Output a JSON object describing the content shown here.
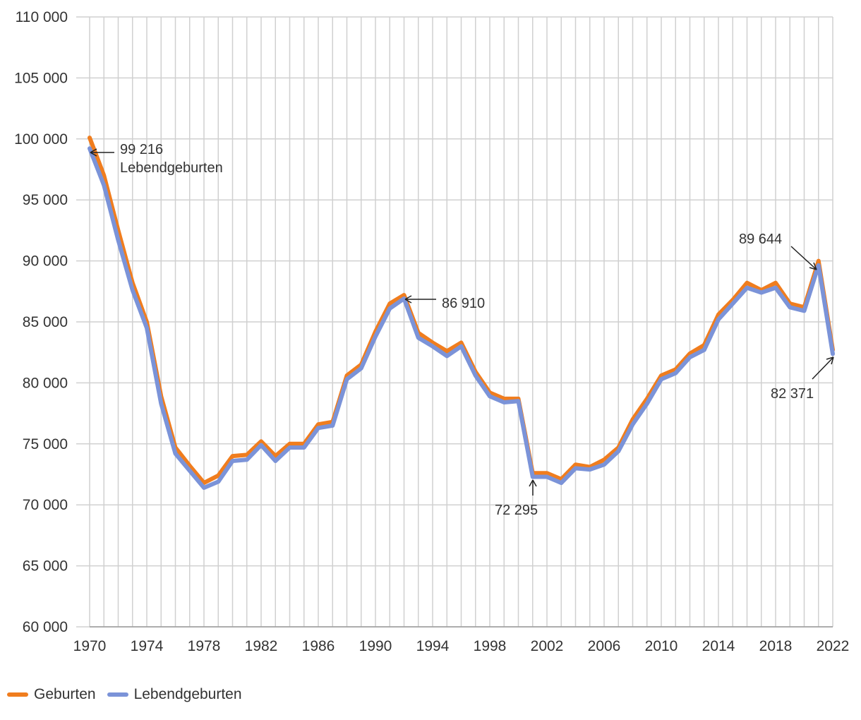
{
  "chart_data": {
    "type": "line",
    "title": "",
    "xlabel": "",
    "ylabel": "",
    "ylim": [
      60000,
      110000
    ],
    "y_ticks": [
      60000,
      65000,
      70000,
      75000,
      80000,
      85000,
      90000,
      95000,
      100000,
      105000,
      110000
    ],
    "y_tick_labels": [
      "60 000",
      "65 000",
      "70 000",
      "75 000",
      "80 000",
      "85 000",
      "90 000",
      "95 000",
      "100 000",
      "105 000",
      "110 000"
    ],
    "x_tick_labels": [
      "1970",
      "1974",
      "1978",
      "1982",
      "1986",
      "1990",
      "1994",
      "1998",
      "2002",
      "2006",
      "2010",
      "2014",
      "2018",
      "2022"
    ],
    "x": [
      1970,
      1971,
      1972,
      1973,
      1974,
      1975,
      1976,
      1977,
      1978,
      1979,
      1980,
      1981,
      1982,
      1983,
      1984,
      1985,
      1986,
      1987,
      1988,
      1989,
      1990,
      1991,
      1992,
      1993,
      1994,
      1995,
      1996,
      1997,
      1998,
      1999,
      2000,
      2001,
      2002,
      2003,
      2004,
      2005,
      2006,
      2007,
      2008,
      2009,
      2010,
      2011,
      2012,
      2013,
      2014,
      2015,
      2016,
      2017,
      2018,
      2019,
      2020,
      2021,
      2022
    ],
    "series": [
      {
        "name": "Geburten",
        "color": "#f07d1e",
        "values": [
          100100,
          97000,
          92500,
          88200,
          85000,
          78900,
          74700,
          73200,
          71800,
          72400,
          74000,
          74100,
          75200,
          74000,
          75000,
          75000,
          76600,
          76800,
          80600,
          81500,
          84200,
          86500,
          87200,
          84100,
          83300,
          82600,
          83300,
          80900,
          79200,
          78700,
          78700,
          72600,
          72600,
          72100,
          73300,
          73100,
          73700,
          74700,
          77000,
          78700,
          80600,
          81100,
          82400,
          83100,
          85600,
          86800,
          88200,
          87600,
          88200,
          86500,
          86200,
          90000,
          82700
        ]
      },
      {
        "name": "Lebendgeburten",
        "color": "#7b93d8",
        "values": [
          99216,
          96200,
          91700,
          87600,
          84500,
          78300,
          74200,
          72800,
          71400,
          71900,
          73600,
          73700,
          74900,
          73600,
          74700,
          74700,
          76300,
          76500,
          80300,
          81200,
          83800,
          86100,
          86910,
          83700,
          83000,
          82200,
          83000,
          80600,
          78900,
          78400,
          78500,
          72295,
          72300,
          71800,
          73000,
          72900,
          73300,
          74400,
          76600,
          78300,
          80300,
          80800,
          82100,
          82700,
          85200,
          86500,
          87800,
          87400,
          87800,
          86200,
          85900,
          89644,
          82371
        ]
      }
    ],
    "annotations": {
      "a1970_value": "99 216",
      "a1970_label": "Lebendgeburten",
      "a1992": "86 910",
      "a2001": "72 295",
      "a2021": "89 644",
      "a2022": "82 371"
    },
    "grid": true,
    "legend_position": "bottom-left"
  }
}
